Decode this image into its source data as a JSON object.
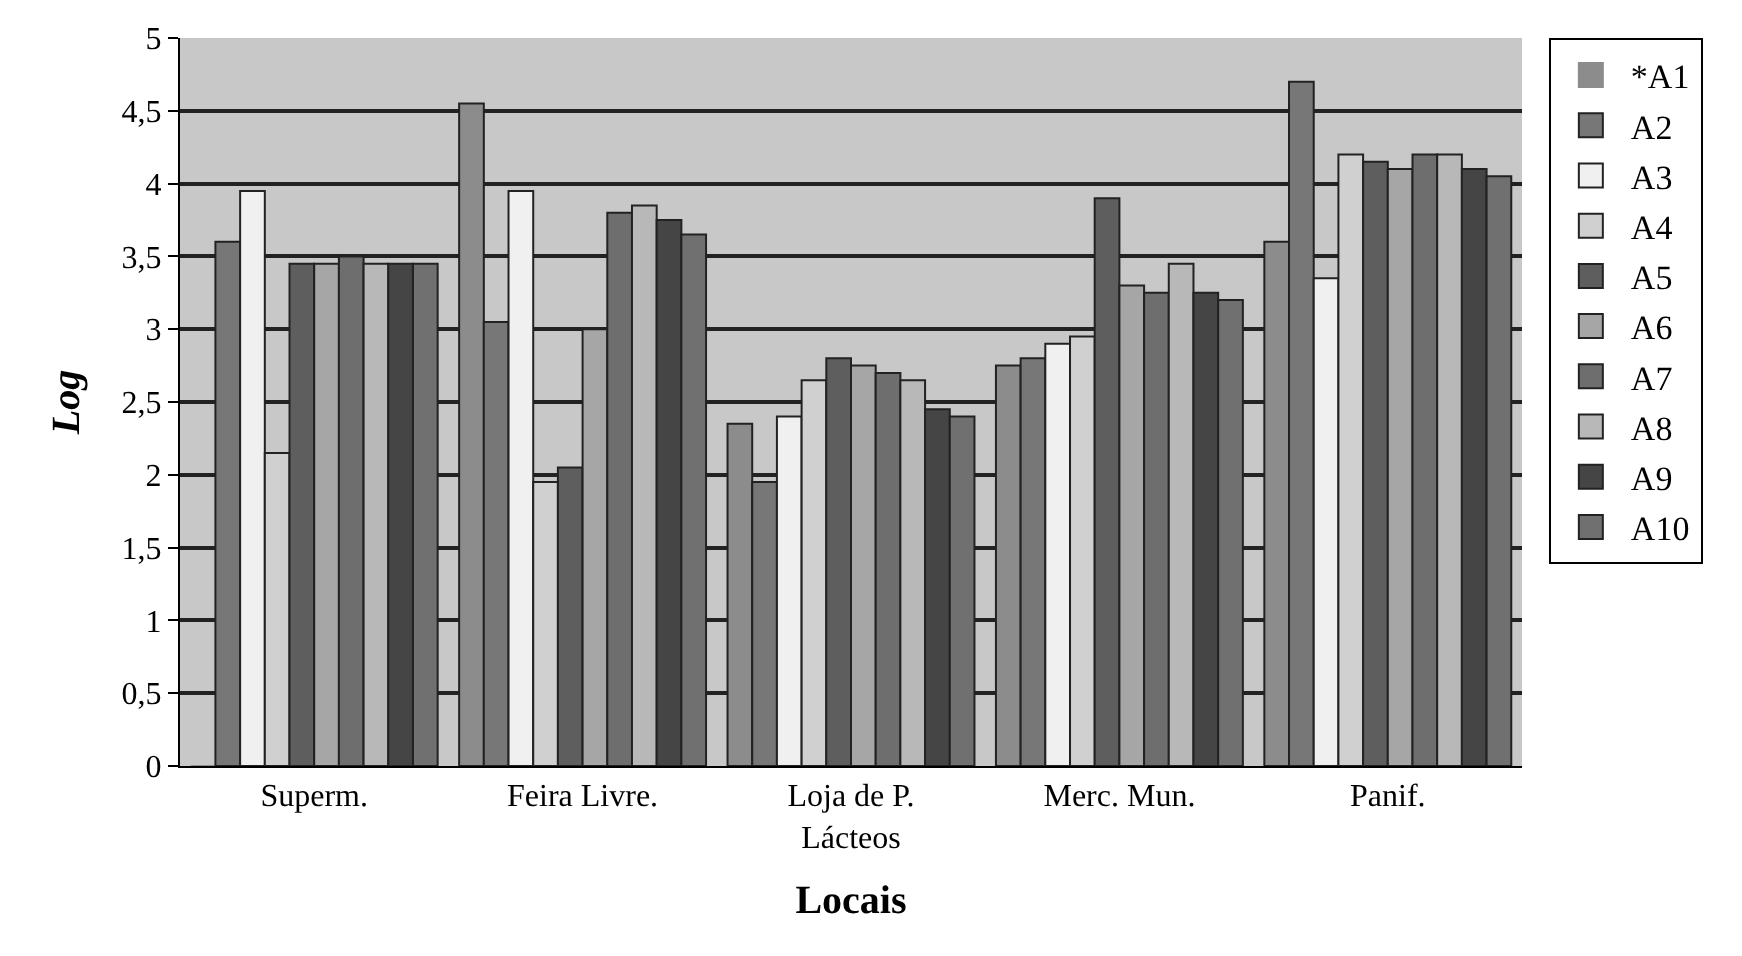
{
  "chart_data": {
    "type": "bar",
    "xlabel": "Locais",
    "ylabel": "Log",
    "categories": [
      "Superm.",
      "Feira Livre.",
      "Loja de P.\nLácteos",
      "Merc. Mun.",
      "Panif."
    ],
    "series": [
      {
        "name": "*A1",
        "color": "#8c8c8c",
        "values": [
          0,
          4.55,
          2.35,
          2.75,
          3.6
        ]
      },
      {
        "name": "A2",
        "color": "#777777",
        "values": [
          3.6,
          3.05,
          1.95,
          2.8,
          4.7
        ]
      },
      {
        "name": "A3",
        "color": "#f0f0f0",
        "values": [
          3.95,
          3.95,
          2.4,
          2.9,
          3.35
        ]
      },
      {
        "name": "A4",
        "color": "#d0d0d0",
        "values": [
          2.15,
          1.95,
          2.65,
          2.95,
          4.2
        ]
      },
      {
        "name": "A5",
        "color": "#5e5e5e",
        "values": [
          3.45,
          2.05,
          2.8,
          3.9,
          4.15
        ]
      },
      {
        "name": "A6",
        "color": "#a6a6a6",
        "values": [
          3.45,
          3.0,
          2.75,
          3.3,
          4.1
        ]
      },
      {
        "name": "A7",
        "color": "#6e6e6e",
        "values": [
          3.5,
          3.8,
          2.7,
          3.25,
          4.2
        ]
      },
      {
        "name": "A8",
        "color": "#b8b8b8",
        "values": [
          3.45,
          3.85,
          2.65,
          3.45,
          4.2
        ]
      },
      {
        "name": "A9",
        "color": "#454545",
        "values": [
          3.45,
          3.75,
          2.45,
          3.25,
          4.1
        ]
      },
      {
        "name": "A10",
        "color": "#707070",
        "values": [
          3.45,
          3.65,
          2.4,
          3.2,
          4.05
        ]
      }
    ],
    "ylim": [
      0,
      5
    ],
    "yticks": [
      0,
      {
        "value": 0.5,
        "label": "0,5"
      },
      1,
      {
        "value": 1.5,
        "label": "1,5"
      },
      2,
      {
        "value": 2.5,
        "label": "2,5"
      },
      3,
      {
        "value": 3.5,
        "label": "3,5"
      },
      4,
      {
        "value": 4.5,
        "label": "4,5"
      },
      5
    ],
    "grid": "y",
    "legend": "right"
  }
}
